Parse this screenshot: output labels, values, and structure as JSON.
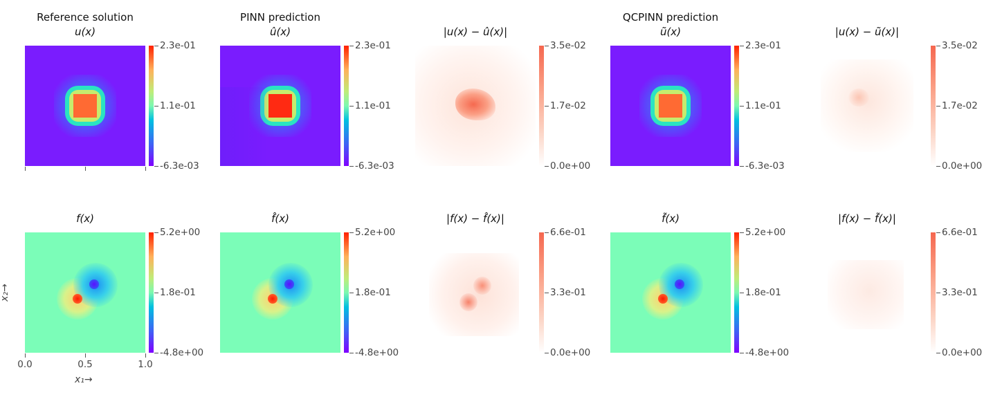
{
  "chart_data": [
    {
      "type": "heatmap",
      "row": 0,
      "col": 0,
      "suptitle": "Reference solution",
      "title": "u(x)",
      "colormap": "rainbow",
      "colorbar_ticks": [
        "2.3e-01",
        "1.1e-01",
        "-6.3e-03"
      ],
      "vmin": -0.0063,
      "vmax": 0.23
    },
    {
      "type": "heatmap",
      "row": 0,
      "col": 1,
      "suptitle": "PINN prediction",
      "title": "û(x)",
      "colormap": "rainbow",
      "colorbar_ticks": [
        "2.3e-01",
        "1.1e-01",
        "-6.3e-03"
      ],
      "vmin": -0.0063,
      "vmax": 0.23
    },
    {
      "type": "heatmap",
      "row": 0,
      "col": 2,
      "suptitle": "",
      "title": "|u(x) − û(x)|",
      "colormap": "Reds",
      "colorbar_ticks": [
        "3.5e-02",
        "1.7e-02",
        "0.0e+00"
      ],
      "vmin": 0.0,
      "vmax": 0.035
    },
    {
      "type": "heatmap",
      "row": 0,
      "col": 3,
      "suptitle": "QCPINN prediction",
      "title": "ũ(x)",
      "colormap": "rainbow",
      "colorbar_ticks": [
        "2.3e-01",
        "1.1e-01",
        "-6.3e-03"
      ],
      "vmin": -0.0063,
      "vmax": 0.23
    },
    {
      "type": "heatmap",
      "row": 0,
      "col": 4,
      "suptitle": "",
      "title": "|u(x) − ũ(x)|",
      "colormap": "Reds",
      "colorbar_ticks": [
        "3.5e-02",
        "1.7e-02",
        "0.0e+00"
      ],
      "vmin": 0.0,
      "vmax": 0.035
    },
    {
      "type": "heatmap",
      "row": 1,
      "col": 0,
      "suptitle": "",
      "title": "f(x)",
      "colormap": "rainbow",
      "colorbar_ticks": [
        "5.2e+00",
        "1.8e-01",
        "-4.8e+00"
      ],
      "vmin": -4.8,
      "vmax": 5.2,
      "xlabel": "x₁→",
      "ylabel": "x₂→",
      "xticks": [
        "0.0",
        "0.5",
        "1.0"
      ],
      "xlim": [
        0.0,
        1.0
      ]
    },
    {
      "type": "heatmap",
      "row": 1,
      "col": 1,
      "suptitle": "",
      "title": "f̂(x)",
      "colormap": "rainbow",
      "colorbar_ticks": [
        "5.2e+00",
        "1.8e-01",
        "-4.8e+00"
      ],
      "vmin": -4.8,
      "vmax": 5.2
    },
    {
      "type": "heatmap",
      "row": 1,
      "col": 2,
      "suptitle": "",
      "title": "|f(x) − f̂(x)|",
      "colormap": "Reds",
      "colorbar_ticks": [
        "6.6e-01",
        "3.3e-01",
        "0.0e+00"
      ],
      "vmin": 0.0,
      "vmax": 0.66
    },
    {
      "type": "heatmap",
      "row": 1,
      "col": 3,
      "suptitle": "",
      "title": "f̃(x)",
      "colormap": "rainbow",
      "colorbar_ticks": [
        "5.2e+00",
        "1.8e-01",
        "-4.8e+00"
      ],
      "vmin": -4.8,
      "vmax": 5.2
    },
    {
      "type": "heatmap",
      "row": 1,
      "col": 4,
      "suptitle": "",
      "title": "|f(x) − f̃(x)|",
      "colormap": "Reds",
      "colorbar_ticks": [
        "6.6e-01",
        "3.3e-01",
        "0.0e+00"
      ],
      "vmin": 0.0,
      "vmax": 0.66
    }
  ]
}
